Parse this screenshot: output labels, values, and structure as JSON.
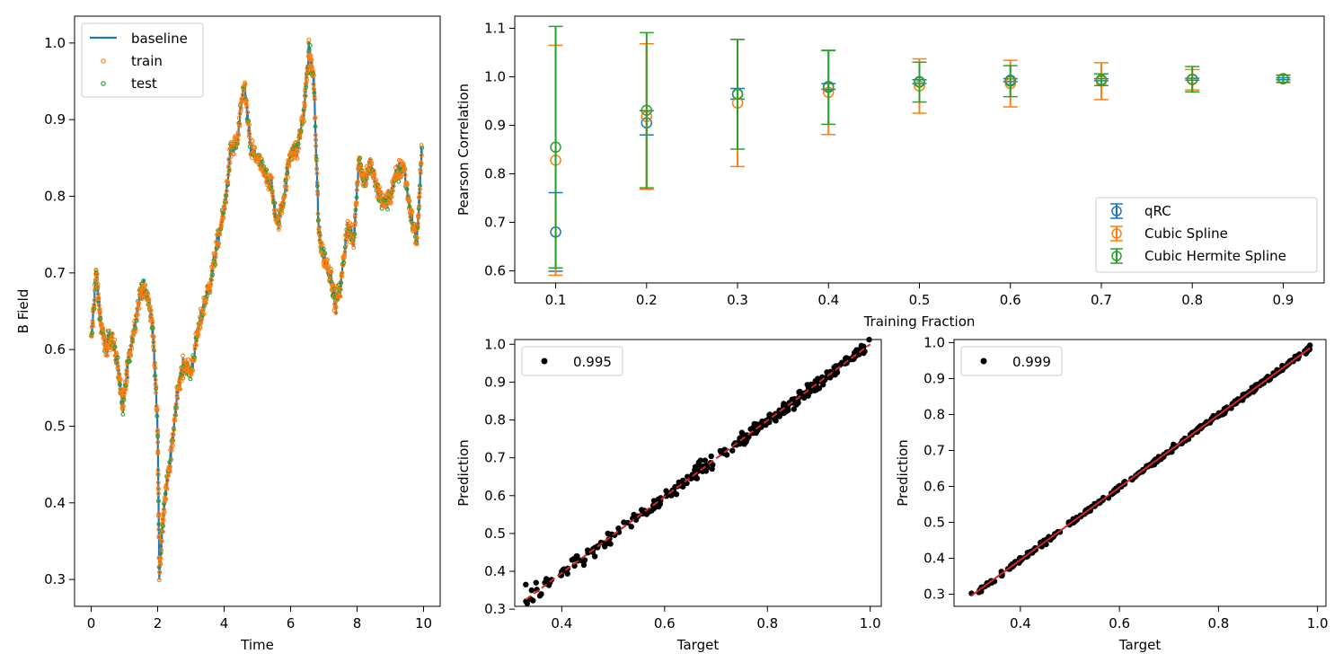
{
  "chart_data": [
    {
      "type": "line",
      "panel": "time-series",
      "xlabel": "Time",
      "ylabel": "B Field",
      "xlim": [
        -0.5,
        10.5
      ],
      "ylim": [
        0.265,
        1.035
      ],
      "xticks": [
        0,
        2,
        4,
        6,
        8,
        10
      ],
      "xtick_labels": [
        "0",
        "2",
        "4",
        "6",
        "8",
        "10"
      ],
      "yticks": [
        0.3,
        0.4,
        0.5,
        0.6,
        0.7,
        0.8,
        0.9,
        1.0
      ],
      "ytick_labels": [
        "0.3",
        "0.4",
        "0.5",
        "0.6",
        "0.7",
        "0.8",
        "0.9",
        "1.0"
      ],
      "legend_position": "top-left",
      "series": [
        {
          "name": "baseline",
          "style": "line",
          "color": "#1f77b4",
          "x": [
            0,
            0.15,
            0.3,
            0.45,
            0.6,
            0.8,
            0.95,
            1.1,
            1.3,
            1.5,
            1.7,
            1.85,
            2.0,
            2.05,
            2.2,
            2.4,
            2.6,
            2.8,
            3.0,
            3.2,
            3.4,
            3.6,
            3.8,
            4.0,
            4.2,
            4.4,
            4.6,
            4.8,
            5.0,
            5.2,
            5.4,
            5.6,
            5.8,
            6.0,
            6.2,
            6.4,
            6.55,
            6.7,
            6.85,
            7.0,
            7.2,
            7.35,
            7.5,
            7.7,
            7.9,
            8.05,
            8.2,
            8.4,
            8.6,
            8.8,
            9.0,
            9.2,
            9.4,
            9.6,
            9.8,
            9.95
          ],
          "y": [
            0.61,
            0.7,
            0.63,
            0.6,
            0.62,
            0.58,
            0.52,
            0.58,
            0.63,
            0.68,
            0.67,
            0.63,
            0.5,
            0.31,
            0.4,
            0.46,
            0.55,
            0.58,
            0.57,
            0.62,
            0.66,
            0.69,
            0.74,
            0.78,
            0.86,
            0.87,
            0.95,
            0.86,
            0.85,
            0.83,
            0.82,
            0.76,
            0.8,
            0.86,
            0.86,
            0.91,
            0.99,
            0.95,
            0.75,
            0.72,
            0.7,
            0.66,
            0.68,
            0.76,
            0.74,
            0.85,
            0.82,
            0.84,
            0.81,
            0.79,
            0.8,
            0.83,
            0.84,
            0.78,
            0.74,
            0.86
          ]
        },
        {
          "name": "train",
          "style": "dots",
          "color": "#ff7f0e"
        },
        {
          "name": "test",
          "style": "dots",
          "color": "#2ca02c"
        }
      ]
    },
    {
      "type": "errorbar",
      "panel": "correlation",
      "xlabel": "Training Fraction",
      "ylabel": "Pearson Correlation",
      "xlim": [
        0.055,
        0.945
      ],
      "ylim": [
        0.575,
        1.125
      ],
      "xticks": [
        0.1,
        0.2,
        0.3,
        0.4,
        0.5,
        0.6,
        0.7,
        0.8,
        0.9
      ],
      "xtick_labels": [
        "0.1",
        "0.2",
        "0.3",
        "0.4",
        "0.5",
        "0.6",
        "0.7",
        "0.8",
        "0.9"
      ],
      "yticks": [
        0.6,
        0.7,
        0.8,
        0.9,
        1.0,
        1.1
      ],
      "ytick_labels": [
        "0.6",
        "0.7",
        "0.8",
        "0.9",
        "1.0",
        "1.1"
      ],
      "legend_position": "bottom-right",
      "x": [
        0.1,
        0.2,
        0.3,
        0.4,
        0.5,
        0.6,
        0.7,
        0.8,
        0.9
      ],
      "series": [
        {
          "name": "qRC",
          "color": "#1f77b4",
          "values": [
            0.68,
            0.905,
            0.965,
            0.98,
            0.99,
            0.993,
            0.994,
            0.995,
            0.996
          ],
          "errors": [
            0.081,
            0.025,
            0.011,
            0.006,
            0.004,
            0.003,
            0.002,
            0.002,
            0.002
          ]
        },
        {
          "name": "Cubic Spline",
          "color": "#ff7f0e",
          "values": [
            0.828,
            0.918,
            0.946,
            0.968,
            0.981,
            0.986,
            0.991,
            0.994,
            0.996
          ],
          "errors": [
            0.237,
            0.15,
            0.131,
            0.087,
            0.056,
            0.048,
            0.038,
            0.021,
            0.008
          ]
        },
        {
          "name": "Cubic Hermite Spline",
          "color": "#2ca02c",
          "values": [
            0.855,
            0.931,
            0.964,
            0.978,
            0.989,
            0.991,
            0.994,
            0.995,
            0.996
          ],
          "errors": [
            0.249,
            0.16,
            0.113,
            0.076,
            0.041,
            0.032,
            0.012,
            0.026,
            0.007
          ]
        }
      ]
    },
    {
      "type": "scatter",
      "panel": "prediction-left",
      "xlabel": "Target",
      "ylabel": "Prediction",
      "xlim": [
        0.3085,
        1.0215
      ],
      "ylim": [
        0.3075,
        1.0125
      ],
      "xticks": [
        0.4,
        0.6,
        0.8,
        1.0
      ],
      "xtick_labels": [
        "0.4",
        "0.6",
        "0.8",
        "1.0"
      ],
      "yticks": [
        0.3,
        0.4,
        0.5,
        0.6,
        0.7,
        0.8,
        0.9,
        1.0
      ],
      "ytick_labels": [
        "0.3",
        "0.4",
        "0.5",
        "0.6",
        "0.7",
        "0.8",
        "0.9",
        "1.0"
      ],
      "legend_position": "top-left",
      "legend_label": "0.995",
      "fit_line": {
        "x": [
          0.33,
          1.0
        ],
        "y": [
          0.325,
          1.0
        ],
        "color": "#d62728",
        "dashed": true
      },
      "points": {
        "x_range": [
          0.33,
          1.0
        ],
        "noise": 0.018,
        "count": 300
      },
      "extra_points": [
        [
          0.33,
          0.365
        ],
        [
          0.35,
          0.37
        ],
        [
          0.36,
          0.34
        ],
        [
          0.37,
          0.38
        ],
        [
          0.42,
          0.43
        ],
        [
          0.43,
          0.44
        ]
      ]
    },
    {
      "type": "scatter",
      "panel": "prediction-right",
      "xlabel": "Target",
      "ylabel": "Prediction",
      "xlim": [
        0.266,
        1.017
      ],
      "ylim": [
        0.2665,
        1.0085
      ],
      "xticks": [
        0.4,
        0.6,
        0.8,
        1.0
      ],
      "xtick_labels": [
        "0.4",
        "0.6",
        "0.8",
        "1.0"
      ],
      "yticks": [
        0.3,
        0.4,
        0.5,
        0.6,
        0.7,
        0.8,
        0.9,
        1.0
      ],
      "ytick_labels": [
        "0.3",
        "0.4",
        "0.5",
        "0.6",
        "0.7",
        "0.8",
        "0.9",
        "1.0"
      ],
      "legend_position": "top-left",
      "legend_label": "0.999",
      "fit_line": {
        "x": [
          0.3,
          0.985
        ],
        "y": [
          0.295,
          0.985
        ],
        "color": "#d62728",
        "dashed": false
      },
      "points": {
        "x_range": [
          0.3,
          0.985
        ],
        "noise": 0.007,
        "count": 400
      }
    }
  ]
}
